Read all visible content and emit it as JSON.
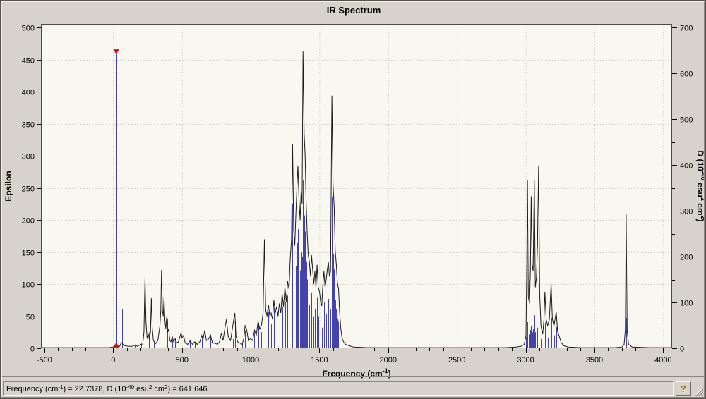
{
  "window": {
    "name": "IR Spectrum viewer"
  },
  "help_button": {
    "label": "?"
  },
  "status_bar": {
    "segments": [
      [
        "Frequency (cm",
        false
      ],
      [
        "-1",
        true
      ],
      [
        ") = 22.7378, D (10",
        false
      ],
      [
        "-40",
        true
      ],
      [
        " esu",
        false
      ],
      [
        "2",
        true
      ],
      [
        " cm",
        false
      ],
      [
        "2",
        true
      ],
      [
        ") = 641.646",
        false
      ]
    ]
  },
  "chart_data": {
    "type": "line",
    "title": "IR Spectrum",
    "xlabel_segments": [
      [
        "Frequency (cm",
        false
      ],
      [
        "-1",
        true
      ],
      [
        ")",
        false
      ]
    ],
    "ylabel_left": "Epsilon",
    "ylabel_right_segments": [
      [
        "D (10",
        false
      ],
      [
        "-40",
        true
      ],
      [
        " esu",
        false
      ],
      [
        "2",
        true
      ],
      [
        " cm",
        false
      ],
      [
        "2",
        true
      ],
      [
        ")",
        false
      ]
    ],
    "grid": true,
    "x_range": [
      -525,
      4065
    ],
    "eps_range": [
      0,
      506
    ],
    "d_range": [
      0,
      708
    ],
    "x_ticks_labeled": [
      -500,
      0,
      500,
      1000,
      1500,
      2000,
      2500,
      3000,
      3500,
      4000
    ],
    "x_minor_step": 100,
    "eps_ticks_labeled": [
      0,
      50,
      100,
      150,
      200,
      250,
      300,
      350,
      400,
      450,
      500
    ],
    "d_ticks_labeled": [
      0,
      100,
      200,
      300,
      400,
      500,
      600,
      700
    ],
    "d_minor_step": 50,
    "grid_x": [
      0,
      500,
      1000,
      1500,
      2000,
      2500,
      3000,
      3500,
      4000
    ],
    "grid_eps": [
      50,
      100,
      150,
      200,
      250,
      300,
      350,
      400,
      450
    ],
    "selected_mode": {
      "frequency": 22.7378,
      "d": 641.646
    },
    "colors": {
      "window_bg": "#d7d3cb",
      "plot_bg": "#f9f8f0",
      "grid": "#c9c9c0",
      "frame": "#4a4a4a",
      "envelope": "#1c1c1c",
      "sticks": "#4343a8",
      "marker": "#c41414"
    },
    "envelope_eps_points": [
      [
        -525,
        1
      ],
      [
        -300,
        1
      ],
      [
        -100,
        1
      ],
      [
        -30,
        1
      ],
      [
        0,
        2
      ],
      [
        15,
        5
      ],
      [
        23,
        7
      ],
      [
        32,
        4
      ],
      [
        48,
        3
      ],
      [
        60,
        9
      ],
      [
        72,
        6
      ],
      [
        85,
        4
      ],
      [
        110,
        3
      ],
      [
        140,
        3
      ],
      [
        160,
        5
      ],
      [
        178,
        3
      ],
      [
        200,
        6
      ],
      [
        215,
        5
      ],
      [
        224,
        25
      ],
      [
        232,
        110
      ],
      [
        239,
        40
      ],
      [
        247,
        15
      ],
      [
        256,
        22
      ],
      [
        264,
        14
      ],
      [
        272,
        26
      ],
      [
        278,
        78
      ],
      [
        284,
        32
      ],
      [
        293,
        12
      ],
      [
        308,
        7
      ],
      [
        325,
        12
      ],
      [
        340,
        35
      ],
      [
        347,
        60
      ],
      [
        352,
        122
      ],
      [
        358,
        60
      ],
      [
        365,
        50
      ],
      [
        370,
        80
      ],
      [
        376,
        45
      ],
      [
        383,
        30
      ],
      [
        390,
        50
      ],
      [
        396,
        25
      ],
      [
        404,
        30
      ],
      [
        412,
        12
      ],
      [
        420,
        10
      ],
      [
        430,
        18
      ],
      [
        440,
        10
      ],
      [
        452,
        15
      ],
      [
        462,
        8
      ],
      [
        475,
        10
      ],
      [
        486,
        18
      ],
      [
        494,
        24
      ],
      [
        502,
        16
      ],
      [
        512,
        20
      ],
      [
        524,
        8
      ],
      [
        543,
        6
      ],
      [
        561,
        12
      ],
      [
        577,
        6
      ],
      [
        594,
        10
      ],
      [
        611,
        6
      ],
      [
        630,
        10
      ],
      [
        645,
        20
      ],
      [
        654,
        14
      ],
      [
        666,
        28
      ],
      [
        678,
        12
      ],
      [
        692,
        14
      ],
      [
        708,
        20
      ],
      [
        722,
        8
      ],
      [
        739,
        8
      ],
      [
        757,
        6
      ],
      [
        774,
        10
      ],
      [
        788,
        24
      ],
      [
        799,
        12
      ],
      [
        812,
        30
      ],
      [
        824,
        45
      ],
      [
        837,
        18
      ],
      [
        854,
        12
      ],
      [
        870,
        35
      ],
      [
        885,
        55
      ],
      [
        893,
        20
      ],
      [
        905,
        10
      ],
      [
        922,
        8
      ],
      [
        938,
        6
      ],
      [
        950,
        15
      ],
      [
        960,
        35
      ],
      [
        970,
        30
      ],
      [
        984,
        12
      ],
      [
        1000,
        15
      ],
      [
        1014,
        12
      ],
      [
        1028,
        28
      ],
      [
        1041,
        20
      ],
      [
        1054,
        42
      ],
      [
        1066,
        30
      ],
      [
        1078,
        35
      ],
      [
        1090,
        55
      ],
      [
        1100,
        170
      ],
      [
        1109,
        60
      ],
      [
        1119,
        50
      ],
      [
        1129,
        68
      ],
      [
        1139,
        50
      ],
      [
        1149,
        55
      ],
      [
        1159,
        45
      ],
      [
        1169,
        75
      ],
      [
        1179,
        55
      ],
      [
        1189,
        65
      ],
      [
        1199,
        50
      ],
      [
        1209,
        70
      ],
      [
        1219,
        55
      ],
      [
        1229,
        85
      ],
      [
        1239,
        65
      ],
      [
        1249,
        95
      ],
      [
        1259,
        72
      ],
      [
        1269,
        105
      ],
      [
        1279,
        92
      ],
      [
        1288,
        140
      ],
      [
        1297,
        170
      ],
      [
        1305,
        319
      ],
      [
        1313,
        185
      ],
      [
        1321,
        160
      ],
      [
        1329,
        210
      ],
      [
        1337,
        255
      ],
      [
        1344,
        285
      ],
      [
        1352,
        230
      ],
      [
        1360,
        200
      ],
      [
        1367,
        245
      ],
      [
        1374,
        225
      ],
      [
        1381,
        463
      ],
      [
        1389,
        335
      ],
      [
        1396,
        300
      ],
      [
        1404,
        225
      ],
      [
        1411,
        180
      ],
      [
        1419,
        145
      ],
      [
        1427,
        135
      ],
      [
        1435,
        112
      ],
      [
        1443,
        145
      ],
      [
        1451,
        122
      ],
      [
        1459,
        100
      ],
      [
        1467,
        120
      ],
      [
        1475,
        95
      ],
      [
        1483,
        130
      ],
      [
        1491,
        95
      ],
      [
        1501,
        88
      ],
      [
        1509,
        72
      ],
      [
        1517,
        66
      ],
      [
        1525,
        100
      ],
      [
        1533,
        120
      ],
      [
        1541,
        95
      ],
      [
        1549,
        107
      ],
      [
        1557,
        122
      ],
      [
        1565,
        135
      ],
      [
        1573,
        112
      ],
      [
        1581,
        120
      ],
      [
        1591,
        394
      ],
      [
        1599,
        255
      ],
      [
        1607,
        222
      ],
      [
        1615,
        152
      ],
      [
        1623,
        130
      ],
      [
        1631,
        102
      ],
      [
        1639,
        93
      ],
      [
        1647,
        57
      ],
      [
        1655,
        32
      ],
      [
        1664,
        16
      ],
      [
        1675,
        10
      ],
      [
        1691,
        6
      ],
      [
        1714,
        4
      ],
      [
        1748,
        2
      ],
      [
        1850,
        1
      ],
      [
        2600,
        1
      ],
      [
        2850,
        1
      ],
      [
        2930,
        2
      ],
      [
        2965,
        3
      ],
      [
        2990,
        6
      ],
      [
        3002,
        20
      ],
      [
        3008,
        120
      ],
      [
        3013,
        262
      ],
      [
        3019,
        80
      ],
      [
        3028,
        70
      ],
      [
        3034,
        120
      ],
      [
        3040,
        237
      ],
      [
        3047,
        130
      ],
      [
        3054,
        120
      ],
      [
        3063,
        263
      ],
      [
        3070,
        95
      ],
      [
        3078,
        110
      ],
      [
        3086,
        160
      ],
      [
        3094,
        285
      ],
      [
        3102,
        85
      ],
      [
        3111,
        35
      ],
      [
        3124,
        22
      ],
      [
        3133,
        45
      ],
      [
        3140,
        88
      ],
      [
        3149,
        45
      ],
      [
        3160,
        35
      ],
      [
        3172,
        45
      ],
      [
        3185,
        101
      ],
      [
        3194,
        45
      ],
      [
        3206,
        35
      ],
      [
        3222,
        57
      ],
      [
        3232,
        26
      ],
      [
        3245,
        18
      ],
      [
        3258,
        9
      ],
      [
        3276,
        4
      ],
      [
        3310,
        2
      ],
      [
        3400,
        1
      ],
      [
        3650,
        1
      ],
      [
        3700,
        2
      ],
      [
        3716,
        6
      ],
      [
        3725,
        30
      ],
      [
        3731,
        209
      ],
      [
        3738,
        28
      ],
      [
        3748,
        6
      ],
      [
        3775,
        2
      ],
      [
        3900,
        1
      ],
      [
        4065,
        1
      ]
    ],
    "stick_d_values": [
      [
        23,
        641.6
      ],
      [
        38,
        12
      ],
      [
        65,
        85
      ],
      [
        90,
        10
      ],
      [
        160,
        8
      ],
      [
        205,
        12
      ],
      [
        231,
        140
      ],
      [
        258,
        35
      ],
      [
        264,
        105
      ],
      [
        294,
        15
      ],
      [
        340,
        30
      ],
      [
        352,
        445
      ],
      [
        370,
        115
      ],
      [
        392,
        65
      ],
      [
        430,
        20
      ],
      [
        452,
        18
      ],
      [
        494,
        30
      ],
      [
        527,
        50
      ],
      [
        560,
        15
      ],
      [
        594,
        12
      ],
      [
        645,
        22
      ],
      [
        666,
        60
      ],
      [
        708,
        30
      ],
      [
        740,
        10
      ],
      [
        788,
        28
      ],
      [
        812,
        25
      ],
      [
        824,
        45
      ],
      [
        870,
        20
      ],
      [
        887,
        60
      ],
      [
        940,
        12
      ],
      [
        958,
        38
      ],
      [
        984,
        14
      ],
      [
        1014,
        16
      ],
      [
        1028,
        32
      ],
      [
        1054,
        55
      ],
      [
        1078,
        35
      ],
      [
        1100,
        115
      ],
      [
        1129,
        80
      ],
      [
        1149,
        52
      ],
      [
        1169,
        88
      ],
      [
        1189,
        60
      ],
      [
        1209,
        68
      ],
      [
        1229,
        90
      ],
      [
        1249,
        100
      ],
      [
        1269,
        115
      ],
      [
        1279,
        95
      ],
      [
        1297,
        120
      ],
      [
        1305,
        316
      ],
      [
        1313,
        150
      ],
      [
        1329,
        180
      ],
      [
        1337,
        230
      ],
      [
        1344,
        260
      ],
      [
        1360,
        170
      ],
      [
        1367,
        210
      ],
      [
        1374,
        200
      ],
      [
        1381,
        366
      ],
      [
        1389,
        290
      ],
      [
        1396,
        255
      ],
      [
        1404,
        190
      ],
      [
        1411,
        150
      ],
      [
        1419,
        110
      ],
      [
        1427,
        95
      ],
      [
        1443,
        120
      ],
      [
        1451,
        90
      ],
      [
        1459,
        70
      ],
      [
        1467,
        85
      ],
      [
        1483,
        110
      ],
      [
        1491,
        70
      ],
      [
        1517,
        45
      ],
      [
        1525,
        80
      ],
      [
        1533,
        100
      ],
      [
        1549,
        75
      ],
      [
        1557,
        90
      ],
      [
        1565,
        108
      ],
      [
        1581,
        85
      ],
      [
        1591,
        330
      ],
      [
        1599,
        205
      ],
      [
        1607,
        172
      ],
      [
        1615,
        105
      ],
      [
        1623,
        85
      ],
      [
        1631,
        65
      ],
      [
        1639,
        58
      ],
      [
        1647,
        35
      ],
      [
        3002,
        25
      ],
      [
        3008,
        62
      ],
      [
        3013,
        57
      ],
      [
        3028,
        30
      ],
      [
        3034,
        40
      ],
      [
        3040,
        48
      ],
      [
        3047,
        35
      ],
      [
        3054,
        42
      ],
      [
        3063,
        72
      ],
      [
        3070,
        35
      ],
      [
        3086,
        45
      ],
      [
        3094,
        92
      ],
      [
        3111,
        20
      ],
      [
        3133,
        30
      ],
      [
        3140,
        56
      ],
      [
        3160,
        22
      ],
      [
        3185,
        66
      ],
      [
        3206,
        28
      ],
      [
        3222,
        46
      ],
      [
        3731,
        66
      ]
    ]
  }
}
